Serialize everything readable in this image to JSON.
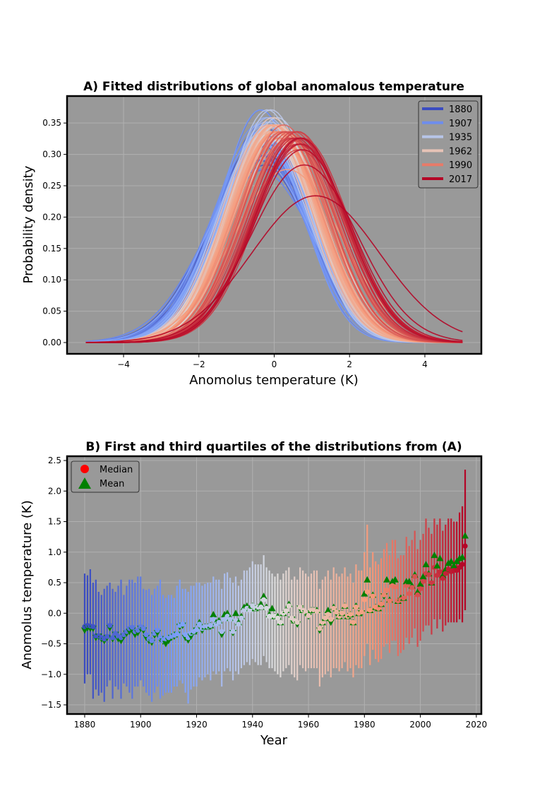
{
  "chart_data": [
    {
      "type": "line",
      "title": "A) Fitted distributions of global anomalous temperature",
      "xlabel": "Anomolus temperature (K)",
      "ylabel": "Probability density",
      "xlim": [
        -5.5,
        5.5
      ],
      "ylim": [
        -0.018,
        0.393
      ],
      "xticks": [
        -4,
        -2,
        0,
        2,
        4
      ],
      "xtick_labels": [
        "−4",
        "−2",
        "0",
        "2",
        "4"
      ],
      "yticks": [
        0,
        0.05,
        0.1,
        0.15,
        0.2,
        0.25,
        0.3,
        0.35
      ],
      "ytick_labels": [
        "0.00",
        "0.05",
        "0.10",
        "0.15",
        "0.20",
        "0.25",
        "0.30",
        "0.35"
      ],
      "x_domain": [
        -5,
        5
      ],
      "grid": true,
      "background": "#999999",
      "colormap": "coolwarm",
      "curve_model": "normal fit per year, centre = median of panel B, spread = interquartile range of panel B / 1.349",
      "legend": {
        "placement": "top-right",
        "entries": [
          "1880",
          "1907",
          "1935",
          "1962",
          "1990",
          "2017"
        ]
      }
    },
    {
      "type": "scatter",
      "title": "B) First and third quartiles of the distributions from (A)",
      "xlabel": "Year",
      "ylabel": "Anomolus temperature (K)",
      "xlim": [
        1873.7,
        2021.8
      ],
      "ylim": [
        -1.65,
        2.57
      ],
      "xticks": [
        1880,
        1900,
        1920,
        1940,
        1960,
        1980,
        2000,
        2020
      ],
      "xtick_labels": [
        "1880",
        "1900",
        "1920",
        "1940",
        "1960",
        "1980",
        "2000",
        "2020"
      ],
      "yticks": [
        -1.5,
        -1.0,
        -0.5,
        0.0,
        0.5,
        1.0,
        1.5,
        2.0,
        2.5
      ],
      "ytick_labels": [
        "−1.5",
        "−1.0",
        "−0.5",
        "0.0",
        "0.5",
        "1.0",
        "1.5",
        "2.0",
        "2.5"
      ],
      "grid": true,
      "background": "#999999",
      "legend": {
        "placement": "top-left",
        "entries": [
          "Median",
          "Mean"
        ]
      },
      "colors": {
        "median_legend": "#ff0000",
        "mean": "#008000"
      },
      "year_start": 1880,
      "median": [
        -0.22,
        -0.2,
        -0.21,
        -0.22,
        -0.37,
        -0.37,
        -0.4,
        -0.42,
        -0.38,
        -0.2,
        -0.4,
        -0.33,
        -0.38,
        -0.4,
        -0.35,
        -0.3,
        -0.25,
        -0.23,
        -0.3,
        -0.28,
        -0.22,
        -0.25,
        -0.35,
        -0.42,
        -0.45,
        -0.33,
        -0.28,
        -0.4,
        -0.45,
        -0.42,
        -0.4,
        -0.38,
        -0.36,
        -0.34,
        -0.2,
        -0.18,
        -0.35,
        -0.4,
        -0.33,
        -0.3,
        -0.27,
        -0.18,
        -0.25,
        -0.22,
        -0.22,
        -0.2,
        -0.1,
        -0.18,
        -0.15,
        -0.3,
        -0.1,
        -0.05,
        -0.1,
        -0.3,
        -0.12,
        -0.18,
        -0.08,
        0.05,
        0.08,
        0.05,
        0.12,
        0.08,
        0.1,
        0.1,
        0.22,
        0.08,
        -0.05,
        -0.05,
        -0.05,
        -0.08,
        -0.15,
        0.0,
        0.04,
        0.12,
        -0.08,
        -0.12,
        -0.15,
        0.1,
        0.05,
        0.02,
        -0.04,
        0.05,
        0.05,
        0.03,
        -0.25,
        -0.15,
        -0.08,
        -0.02,
        -0.1,
        0.08,
        0.02,
        -0.05,
        0.0,
        0.12,
        -0.05,
        -0.02,
        -0.15,
        0.1,
        0.0,
        0.02,
        0.22,
        0.35,
        0.05,
        0.28,
        0.1,
        0.08,
        0.15,
        0.3,
        0.38,
        0.2,
        0.45,
        0.43,
        0.2,
        0.22,
        0.25,
        0.45,
        0.32,
        0.42,
        0.6,
        0.3,
        0.4,
        0.52,
        0.65,
        0.63,
        0.5,
        0.75,
        0.62,
        0.68,
        0.57,
        0.65,
        0.72,
        0.68,
        0.7,
        0.7,
        0.75,
        0.8,
        1.1
      ],
      "mean": [
        -0.28,
        -0.24,
        -0.25,
        -0.25,
        -0.4,
        -0.38,
        -0.42,
        -0.45,
        -0.4,
        -0.24,
        -0.42,
        -0.35,
        -0.42,
        -0.45,
        -0.38,
        -0.33,
        -0.3,
        -0.28,
        -0.35,
        -0.32,
        -0.25,
        -0.28,
        -0.4,
        -0.45,
        -0.48,
        -0.36,
        -0.32,
        -0.42,
        -0.46,
        -0.5,
        -0.45,
        -0.4,
        -0.38,
        -0.35,
        -0.22,
        -0.2,
        -0.4,
        -0.44,
        -0.38,
        -0.3,
        -0.28,
        -0.15,
        -0.28,
        -0.22,
        -0.22,
        -0.2,
        -0.02,
        -0.15,
        -0.12,
        -0.35,
        -0.02,
        0.0,
        -0.08,
        -0.32,
        0.0,
        -0.15,
        -0.05,
        0.1,
        0.12,
        0.08,
        0.12,
        0.08,
        0.1,
        0.15,
        0.28,
        0.1,
        -0.02,
        0.08,
        -0.05,
        -0.05,
        -0.15,
        0.0,
        0.05,
        0.15,
        -0.1,
        -0.12,
        -0.18,
        0.08,
        0.05,
        0.0,
        -0.05,
        0.05,
        0.05,
        0.05,
        -0.28,
        -0.15,
        -0.08,
        0.05,
        -0.15,
        0.1,
        0.0,
        -0.05,
        0.0,
        0.12,
        -0.05,
        -0.02,
        -0.15,
        0.12,
        0.0,
        0.0,
        0.32,
        0.55,
        0.05,
        0.3,
        0.1,
        0.08,
        0.15,
        0.28,
        0.55,
        0.22,
        0.52,
        0.55,
        0.2,
        0.25,
        0.25,
        0.52,
        0.52,
        0.45,
        0.63,
        0.35,
        0.48,
        0.6,
        0.8,
        0.65,
        0.5,
        0.95,
        0.78,
        0.9,
        0.62,
        0.72,
        0.82,
        0.85,
        0.78,
        0.85,
        0.9,
        0.92,
        1.27
      ],
      "first_quartile": [
        -1.15,
        -1.0,
        -1.0,
        -1.4,
        -1.25,
        -1.35,
        -1.3,
        -1.45,
        -1.2,
        -1.1,
        -1.4,
        -1.2,
        -1.25,
        -1.4,
        -1.15,
        -1.2,
        -1.3,
        -1.4,
        -1.2,
        -1.2,
        -1.1,
        -1.2,
        -1.3,
        -1.35,
        -1.45,
        -1.3,
        -1.2,
        -1.4,
        -1.35,
        -1.3,
        -1.3,
        -1.3,
        -1.2,
        -1.2,
        -1.1,
        -1.15,
        -1.3,
        -1.48,
        -1.25,
        -1.2,
        -1.2,
        -1.05,
        -1.1,
        -1.05,
        -1.0,
        -1.1,
        -0.95,
        -1.0,
        -0.95,
        -1.2,
        -0.95,
        -0.9,
        -0.95,
        -1.1,
        -0.95,
        -1.0,
        -0.9,
        -0.85,
        -0.8,
        -0.85,
        -0.75,
        -0.8,
        -0.85,
        -0.85,
        -0.7,
        -0.8,
        -0.9,
        -0.9,
        -0.95,
        -1.0,
        -1.05,
        -0.95,
        -0.9,
        -0.85,
        -1.0,
        -1.05,
        -1.1,
        -0.85,
        -0.9,
        -0.95,
        -0.9,
        -0.9,
        -0.9,
        -0.9,
        -1.2,
        -1.05,
        -1.0,
        -0.95,
        -1.05,
        -0.9,
        -0.9,
        -0.95,
        -0.9,
        -0.8,
        -0.95,
        -0.9,
        -1.05,
        -0.85,
        -0.9,
        -0.9,
        -0.7,
        -0.5,
        -0.85,
        -0.6,
        -0.75,
        -0.8,
        -0.75,
        -0.55,
        -0.5,
        -0.65,
        -0.45,
        -0.45,
        -0.7,
        -0.65,
        -0.6,
        -0.4,
        -0.5,
        -0.4,
        -0.25,
        -0.55,
        -0.45,
        -0.3,
        -0.2,
        -0.2,
        -0.35,
        -0.1,
        -0.25,
        -0.1,
        -0.3,
        -0.2,
        -0.15,
        -0.15,
        -0.15,
        -0.15,
        -0.1,
        -0.15,
        0.05
      ],
      "third_quartile": [
        0.65,
        0.62,
        0.72,
        0.5,
        0.55,
        0.35,
        0.3,
        0.4,
        0.45,
        0.5,
        0.4,
        0.35,
        0.45,
        0.55,
        0.3,
        0.45,
        0.55,
        0.55,
        0.5,
        0.6,
        0.6,
        0.4,
        0.38,
        0.4,
        0.3,
        0.4,
        0.45,
        0.55,
        0.3,
        0.25,
        0.3,
        0.3,
        0.25,
        0.45,
        0.55,
        0.4,
        0.4,
        0.35,
        0.45,
        0.45,
        0.5,
        0.5,
        0.45,
        0.48,
        0.5,
        0.5,
        0.6,
        0.55,
        0.55,
        0.4,
        0.65,
        0.67,
        0.58,
        0.5,
        0.6,
        0.45,
        0.55,
        0.7,
        0.7,
        0.75,
        0.85,
        0.8,
        0.8,
        0.8,
        0.95,
        0.75,
        0.7,
        0.65,
        0.6,
        0.65,
        0.55,
        0.65,
        0.7,
        0.75,
        0.55,
        0.6,
        0.55,
        0.75,
        0.7,
        0.65,
        0.6,
        0.65,
        0.7,
        0.7,
        0.4,
        0.55,
        0.6,
        0.7,
        0.55,
        0.75,
        0.65,
        0.6,
        0.65,
        0.75,
        0.6,
        0.65,
        0.5,
        0.8,
        0.7,
        0.7,
        1.0,
        1.45,
        0.75,
        1.0,
        0.85,
        0.8,
        0.9,
        1.05,
        1.15,
        0.95,
        1.2,
        1.2,
        0.9,
        0.95,
        0.95,
        1.25,
        1.1,
        1.2,
        1.35,
        1.05,
        1.2,
        1.3,
        1.55,
        1.4,
        1.3,
        1.55,
        1.45,
        1.55,
        1.35,
        1.45,
        1.55,
        1.55,
        1.5,
        1.5,
        1.65,
        1.75,
        2.35
      ]
    }
  ]
}
